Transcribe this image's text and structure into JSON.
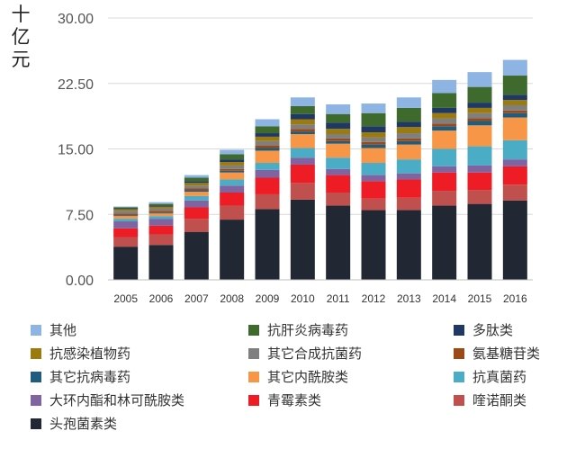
{
  "chart_data": {
    "type": "bar",
    "stacked": true,
    "ylabel": "十亿元",
    "ylim": [
      0,
      30
    ],
    "yticks": [
      "0.00",
      "7.50",
      "15.00",
      "22.50",
      "30.00"
    ],
    "categories": [
      "2005",
      "2006",
      "2007",
      "2008",
      "2009",
      "2010",
      "2011",
      "2012",
      "2013",
      "2014",
      "2015",
      "2016"
    ],
    "grid": true,
    "legend_position": "bottom",
    "series": [
      {
        "name": "头孢菌素类",
        "color": "#222833",
        "values": [
          3.8,
          4.0,
          5.5,
          6.9,
          8.1,
          9.2,
          8.5,
          8.0,
          8.0,
          8.5,
          8.7,
          9.1
        ]
      },
      {
        "name": "喹诺酮类",
        "color": "#c0504d",
        "values": [
          1.1,
          1.2,
          1.5,
          1.6,
          1.7,
          1.9,
          1.5,
          1.3,
          1.4,
          1.7,
          1.6,
          1.8
        ]
      },
      {
        "name": "青霉素类",
        "color": "#ee1c24",
        "values": [
          1.0,
          1.0,
          1.3,
          1.5,
          1.9,
          2.1,
          2.0,
          2.0,
          2.1,
          2.1,
          2.0,
          2.1
        ]
      },
      {
        "name": "大环内酯和林可酰胺类",
        "color": "#8064a2",
        "values": [
          0.8,
          0.8,
          0.8,
          0.8,
          0.9,
          0.8,
          0.7,
          0.7,
          0.7,
          0.7,
          0.8,
          0.8
        ]
      },
      {
        "name": "抗真菌药",
        "color": "#4bacc6",
        "values": [
          0.3,
          0.3,
          0.5,
          0.7,
          0.8,
          1.1,
          1.3,
          1.4,
          1.6,
          2.0,
          2.2,
          2.2
        ]
      },
      {
        "name": "其它内酰胺类",
        "color": "#f79646",
        "values": [
          0.3,
          0.3,
          0.5,
          0.8,
          1.4,
          1.6,
          1.6,
          1.7,
          1.7,
          2.1,
          2.4,
          2.6
        ]
      },
      {
        "name": "其它抗病毒药",
        "color": "#1f5c7e",
        "values": [
          0.1,
          0.1,
          0.2,
          0.2,
          0.3,
          0.3,
          0.3,
          0.4,
          0.4,
          0.5,
          0.5,
          0.5
        ]
      },
      {
        "name": "氨基糖苷类",
        "color": "#9b4a17",
        "values": [
          0.2,
          0.2,
          0.2,
          0.2,
          0.3,
          0.3,
          0.3,
          0.3,
          0.3,
          0.3,
          0.3,
          0.3
        ]
      },
      {
        "name": "其它合成抗菌药",
        "color": "#7f7f7f",
        "values": [
          0.3,
          0.3,
          0.3,
          0.4,
          0.5,
          0.5,
          0.5,
          0.5,
          0.6,
          0.6,
          0.6,
          0.6
        ]
      },
      {
        "name": "抗感染植物药",
        "color": "#9c7b0e",
        "values": [
          0.2,
          0.2,
          0.3,
          0.4,
          0.5,
          0.6,
          0.6,
          0.6,
          0.7,
          0.6,
          0.6,
          0.6
        ]
      },
      {
        "name": "多肽类",
        "color": "#1f3864",
        "values": [
          0.1,
          0.1,
          0.2,
          0.3,
          0.4,
          0.6,
          0.7,
          0.7,
          0.6,
          0.6,
          0.6,
          0.6
        ]
      },
      {
        "name": "抗肝炎病毒药",
        "color": "#3e6b2d",
        "values": [
          0.1,
          0.2,
          0.4,
          0.6,
          0.8,
          0.9,
          1.0,
          1.5,
          1.6,
          1.7,
          1.8,
          2.2
        ]
      },
      {
        "name": "其他",
        "color": "#8eb4e3",
        "values": [
          0.1,
          0.2,
          0.3,
          0.5,
          0.8,
          1.0,
          1.1,
          1.1,
          1.2,
          1.5,
          1.7,
          1.8
        ]
      }
    ]
  },
  "legend_order": [
    "其他",
    "抗肝炎病毒药",
    "多肽类",
    "抗感染植物药",
    "其它合成抗菌药",
    "氨基糖苷类",
    "其它抗病毒药",
    "其它内酰胺类",
    "抗真菌药",
    "大环内酯和林可酰胺类",
    "青霉素类",
    "喹诺酮类",
    "头孢菌素类"
  ]
}
